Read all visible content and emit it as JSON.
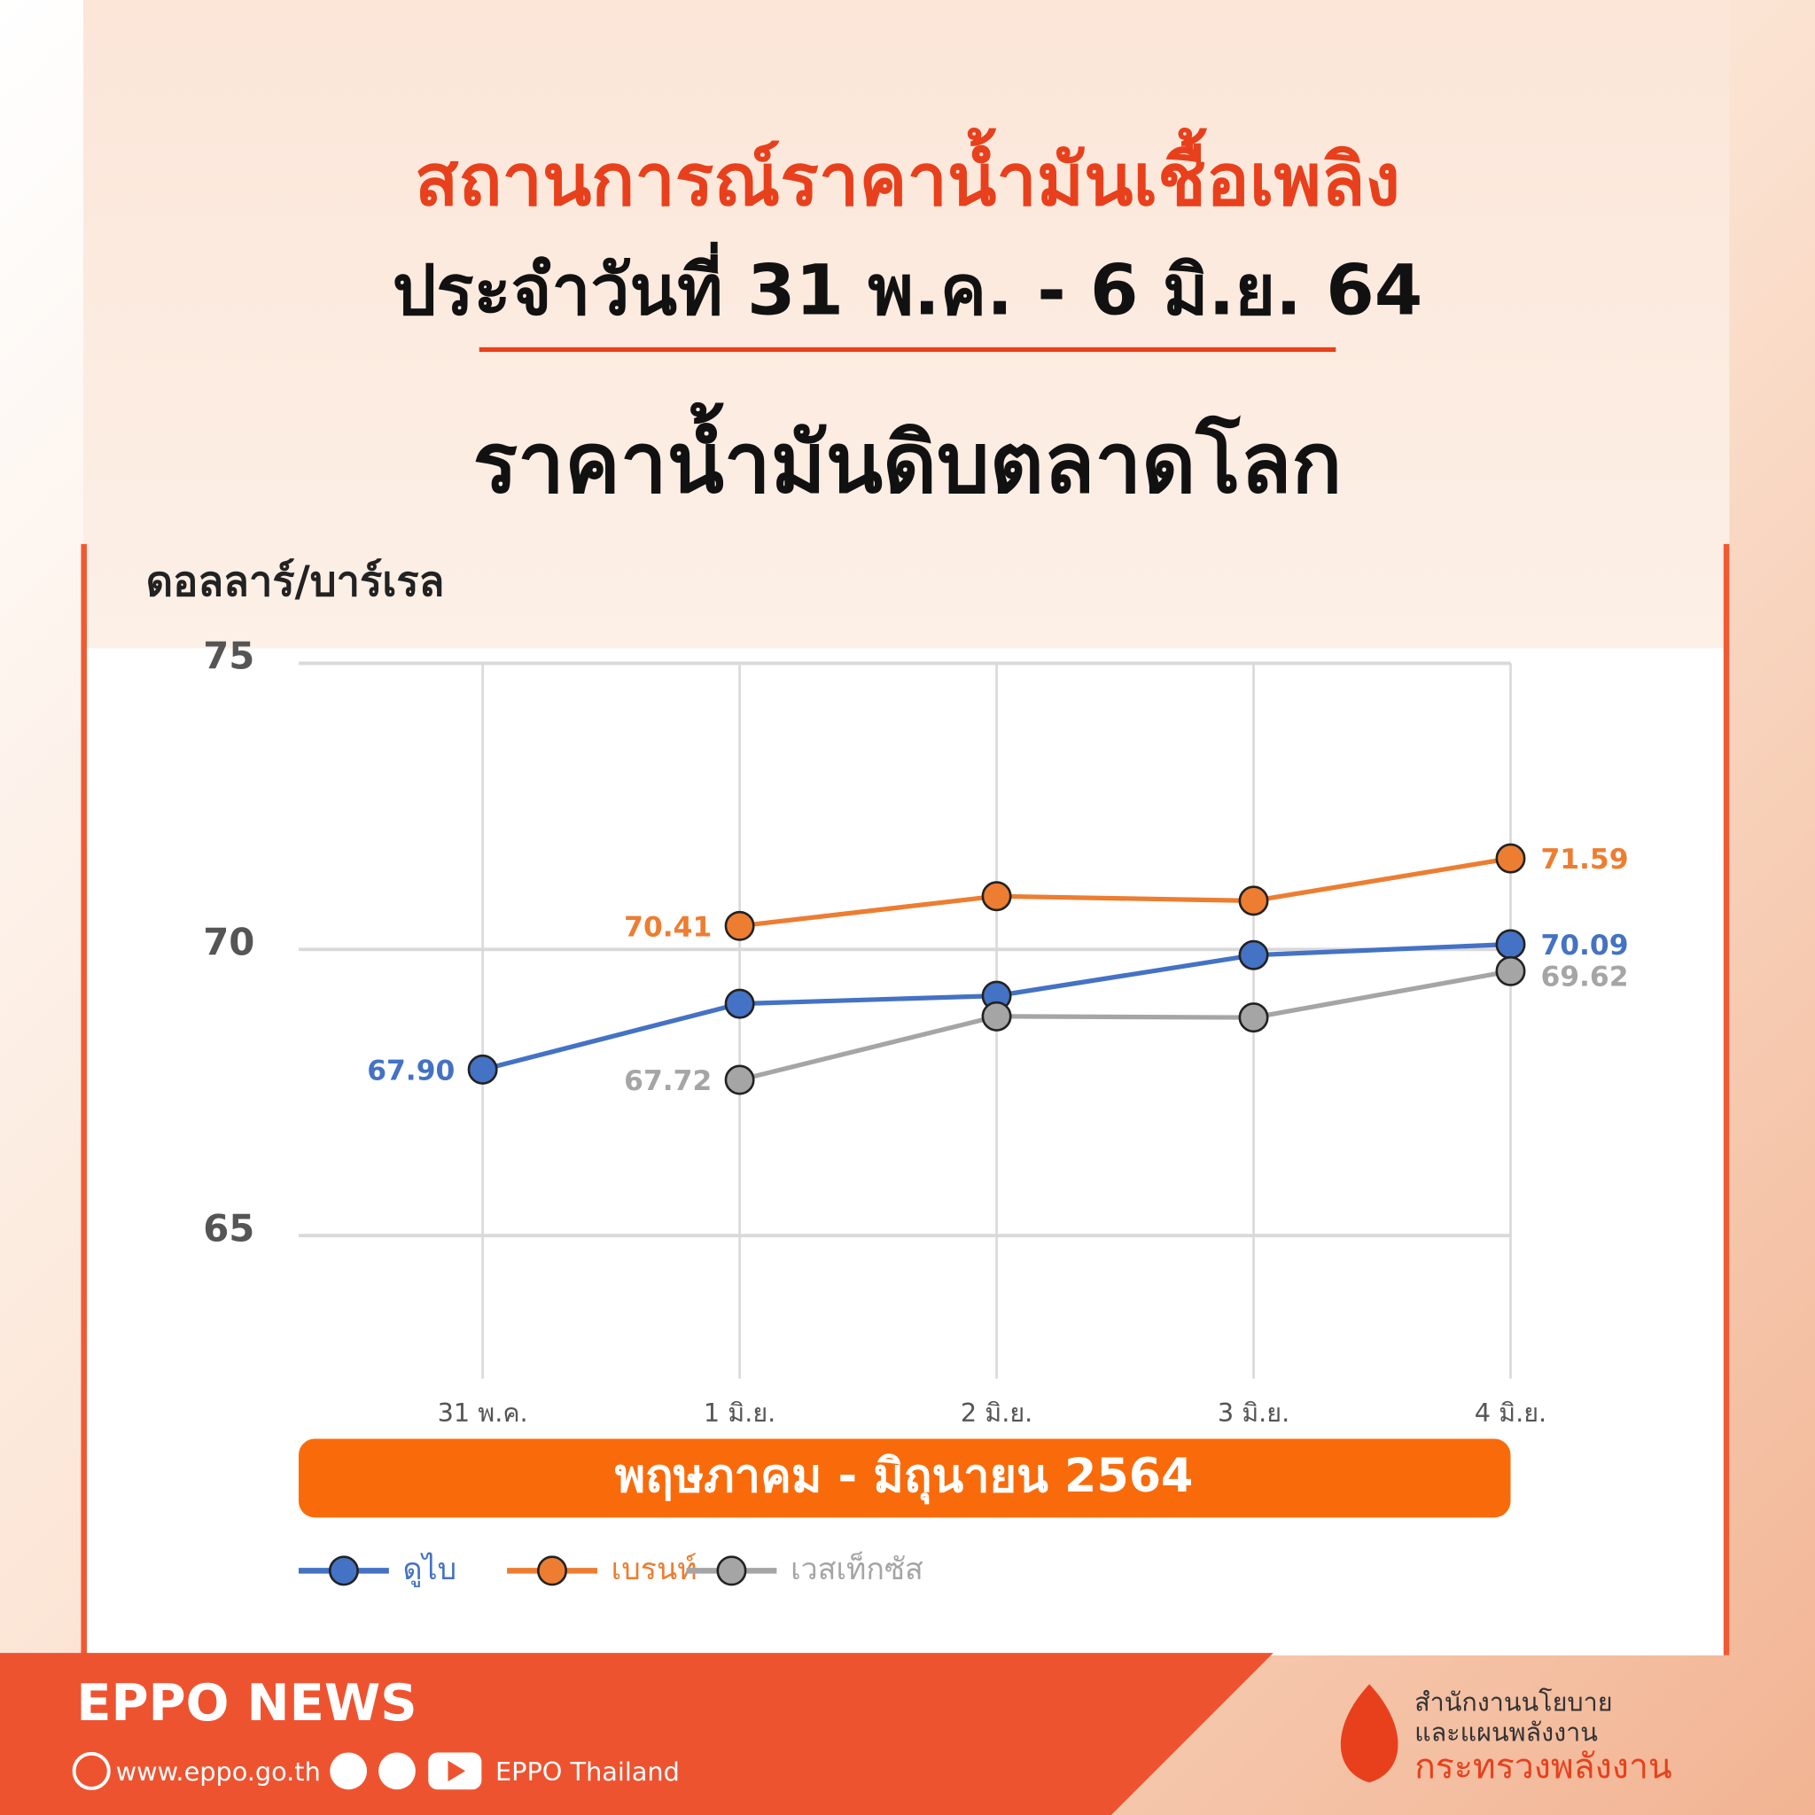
{
  "header": {
    "title": "สถานการณ์ราคาน้ำมันเชื้อเพลิง",
    "subtitle": "ประจำวันที่ 31 พ.ค. - 6 มิ.ย. 64"
  },
  "chart_data": {
    "type": "line",
    "title": "ราคาน้ำมันดิบตลาดโลก",
    "y_label": "ดอลลาร์/บาร์เรล",
    "x_label": "พฤษภาคม - มิถุนายน  2564",
    "categories": [
      "31 พ.ค.",
      "1 มิ.ย.",
      "2 มิ.ย.",
      "3 มิ.ย.",
      "4 มิ.ย."
    ],
    "series": [
      {
        "name": "ดูไบ",
        "color": "#4472c4",
        "values": [
          67.9,
          69.05,
          69.19,
          69.9,
          70.09
        ],
        "value_labels": [
          "67.90",
          null,
          null,
          null,
          "70.09"
        ]
      },
      {
        "name": "เบรนท์",
        "color": "#ed7d31",
        "values": [
          null,
          70.41,
          70.93,
          70.85,
          71.59
        ],
        "value_labels": [
          null,
          "70.41",
          null,
          null,
          "71.59"
        ]
      },
      {
        "name": "เวสเท็กซัส",
        "color": "#a5a5a5",
        "values": [
          null,
          67.72,
          68.83,
          68.81,
          69.62
        ],
        "value_labels": [
          null,
          "67.72",
          null,
          null,
          "69.62"
        ]
      }
    ],
    "ylim": [
      62.5,
      75
    ],
    "yticks": [
      65,
      70,
      75
    ],
    "grid": true,
    "legend": "bottom"
  },
  "footer": {
    "brand": "EPPO NEWS",
    "website": "www.eppo.go.th",
    "social": "EPPO Thailand",
    "org_line1": "สำนักงานนโยบาย",
    "org_line2": "และแผนพลังงาน",
    "ministry": "กระทรวงพลังงาน"
  }
}
